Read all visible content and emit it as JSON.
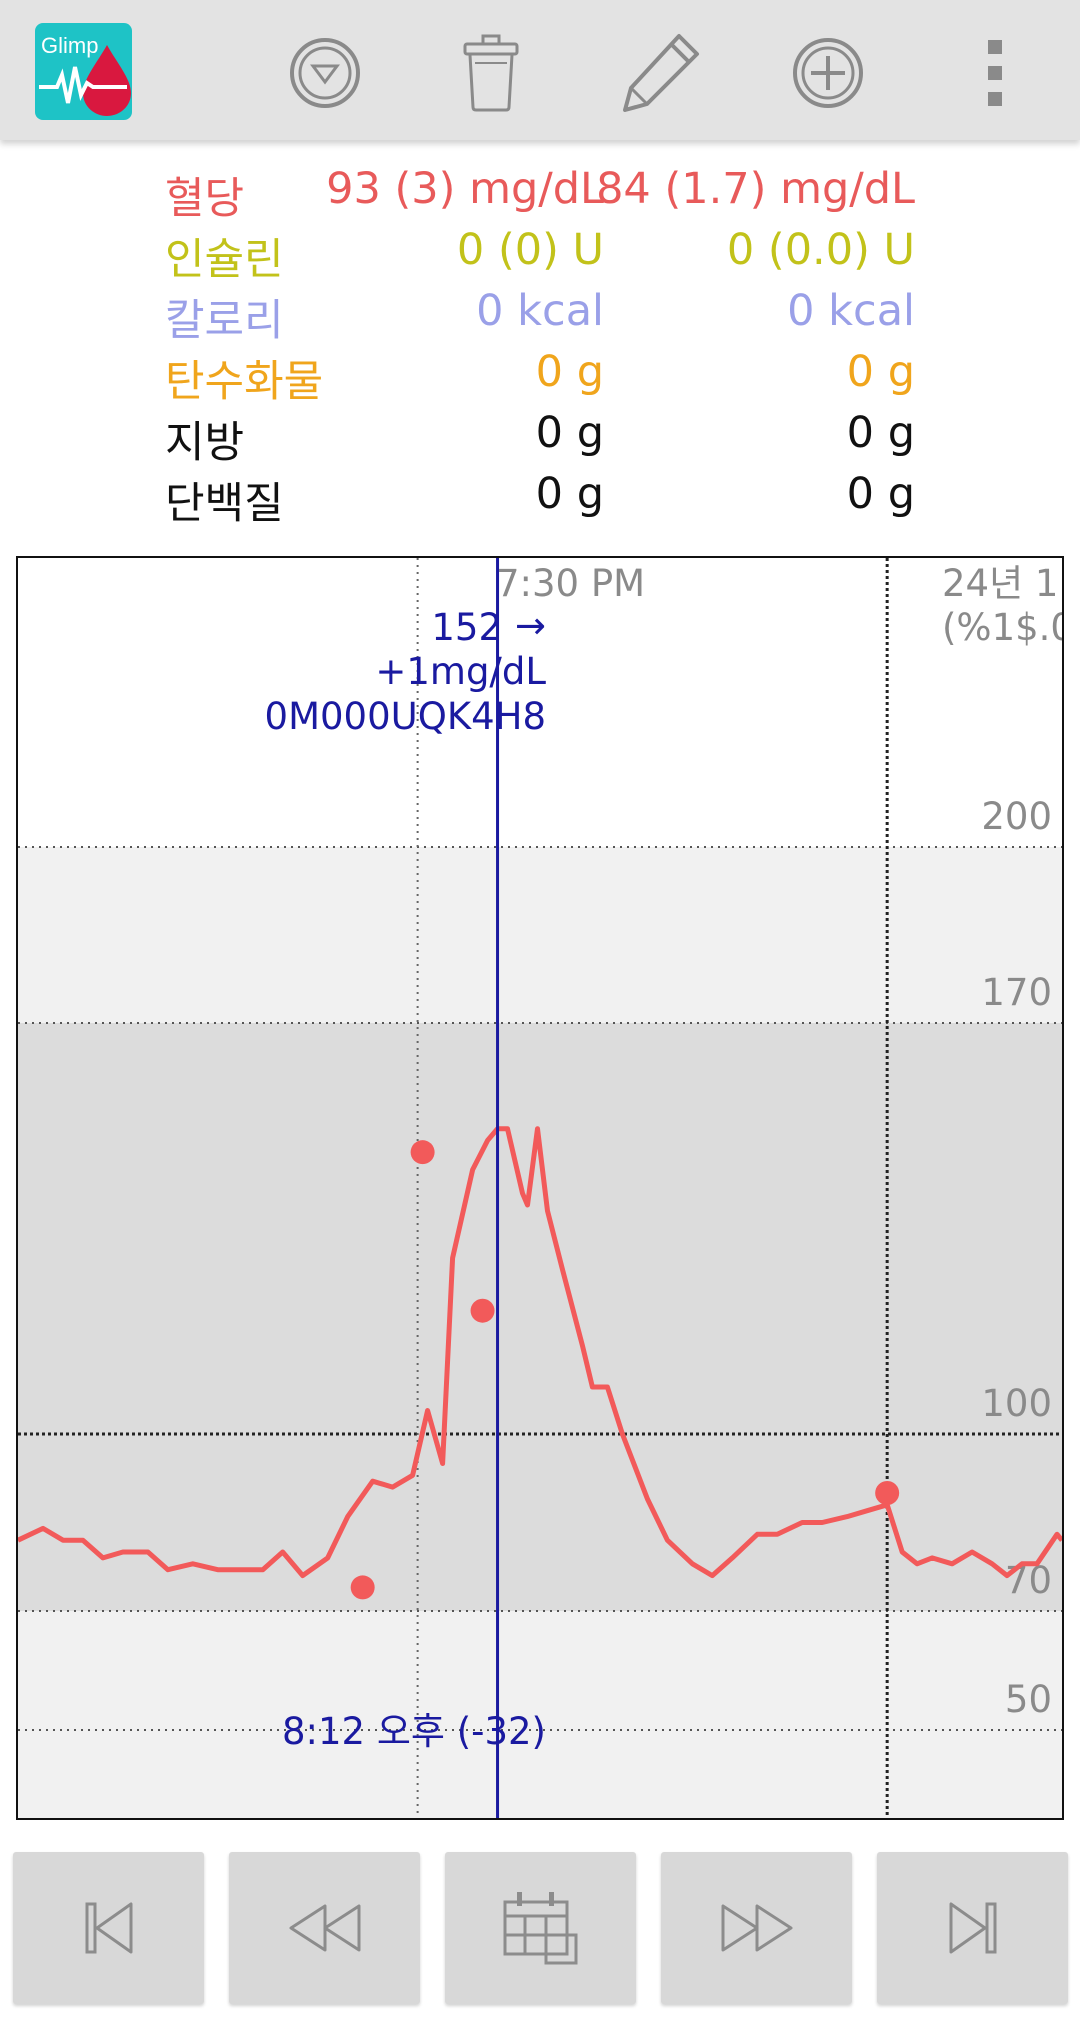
{
  "toolbar": {
    "app_logo_text": "Glimp",
    "buttons": [
      "dropdown",
      "delete",
      "edit",
      "add",
      "more"
    ]
  },
  "stats": [
    {
      "label": "혈당",
      "value1": "93 (3) mg/dL",
      "value2": "84 (1.7) mg/dL",
      "color": "#e85a5a"
    },
    {
      "label": "인슐린",
      "value1": "0 (0) U",
      "value2": "0 (0.0) U",
      "color": "#c2c21a"
    },
    {
      "label": "칼로리",
      "value1": "0 kcal",
      "value2": "0 kcal",
      "color": "#9aa0e8"
    },
    {
      "label": "탄수화물",
      "value1": "0 g",
      "value2": "0 g",
      "color": "#f0a51c"
    },
    {
      "label": "지방",
      "value1": "0 g",
      "value2": "0 g",
      "color": "#111111"
    },
    {
      "label": "단백질",
      "value1": "0 g",
      "value2": "0 g",
      "color": "#111111"
    }
  ],
  "chart": {
    "time_label": "7:30 PM",
    "date_label_line1": "24년 1",
    "date_label_line2": "(%1$.0",
    "cursor_value": "152",
    "cursor_arrow": "→",
    "cursor_delta": "+1mg/dL",
    "cursor_sensor": "0M000UQK4H8",
    "cursor_time": "8:12 오후 (-32)",
    "line_color": "#f25a5a",
    "cursor_color": "#1a1aa0"
  },
  "chart_data": {
    "type": "line",
    "y_ticks": [
      "200",
      "170",
      "100",
      "70",
      "50"
    ],
    "series": [
      {
        "values": [
          [
            0,
            82
          ],
          [
            5,
            84
          ],
          [
            9,
            82
          ],
          [
            13,
            82
          ],
          [
            17,
            79
          ],
          [
            21,
            80
          ],
          [
            26,
            80
          ],
          [
            30,
            77
          ],
          [
            35,
            78
          ],
          [
            40,
            77
          ],
          [
            45,
            77
          ],
          [
            49,
            77
          ],
          [
            53,
            80
          ],
          [
            57,
            76
          ],
          [
            62,
            79
          ],
          [
            66,
            86
          ],
          [
            71,
            92
          ],
          [
            75,
            91
          ],
          [
            79,
            93
          ],
          [
            82,
            104
          ],
          [
            85,
            95
          ],
          [
            87,
            130
          ],
          [
            91,
            145
          ],
          [
            94,
            150
          ],
          [
            96,
            152
          ],
          [
            98,
            152
          ],
          [
            101,
            141
          ],
          [
            102,
            139
          ],
          [
            104,
            152
          ],
          [
            106,
            138
          ],
          [
            109,
            128
          ],
          [
            113,
            115
          ],
          [
            115,
            108
          ],
          [
            118,
            108
          ],
          [
            121,
            100
          ],
          [
            126,
            89
          ],
          [
            130,
            82
          ],
          [
            135,
            78
          ],
          [
            139,
            76
          ],
          [
            143,
            79
          ],
          [
            148,
            83
          ],
          [
            152,
            83
          ],
          [
            157,
            85
          ],
          [
            161,
            85
          ],
          [
            166,
            86
          ],
          [
            170,
            87
          ],
          [
            174,
            88
          ],
          [
            177,
            80
          ],
          [
            180,
            78
          ],
          [
            183,
            79
          ],
          [
            187,
            78
          ],
          [
            191,
            80
          ],
          [
            195,
            78
          ],
          [
            198,
            76
          ],
          [
            201,
            78
          ],
          [
            204,
            78
          ],
          [
            208,
            83
          ],
          [
            209,
            82
          ]
        ]
      },
      {
        "points": [
          [
            69,
            74
          ],
          [
            81,
            148
          ],
          [
            93,
            121
          ],
          [
            174,
            90
          ]
        ]
      }
    ],
    "cursor_x": 96,
    "x_range": [
      0,
      209
    ],
    "ylim": [
      42,
      216
    ],
    "vertical_gridlines_x": [
      80,
      174
    ]
  }
}
